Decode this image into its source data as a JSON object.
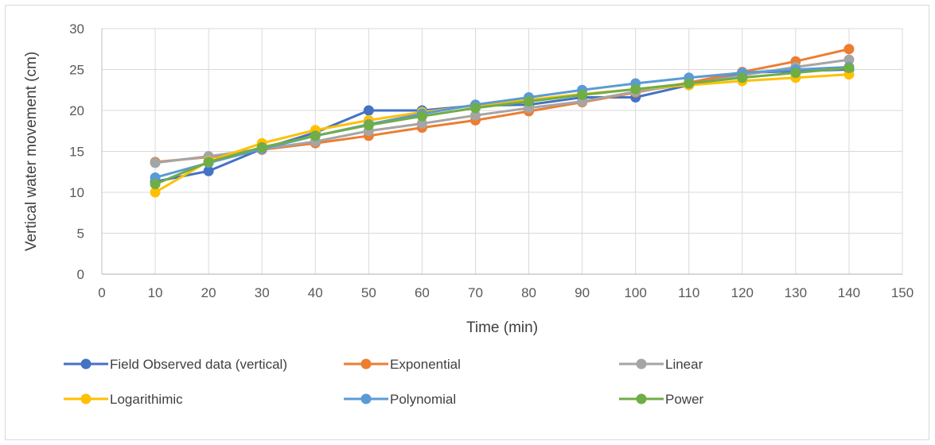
{
  "chart_data": {
    "type": "line",
    "title": "",
    "xlabel": "Time (min)",
    "ylabel": "Vertical water movement (cm)",
    "xlim": [
      0,
      150
    ],
    "ylim": [
      0,
      30
    ],
    "xticks": [
      0,
      10,
      20,
      30,
      40,
      50,
      60,
      70,
      80,
      90,
      100,
      110,
      120,
      130,
      140,
      150
    ],
    "yticks": [
      0,
      5,
      10,
      15,
      20,
      25,
      30
    ],
    "grid": true,
    "legend_position": "bottom",
    "x": [
      10,
      20,
      30,
      40,
      50,
      60,
      70,
      80,
      90,
      100,
      110,
      120,
      130,
      140
    ],
    "series": [
      {
        "name": "Field Observed data (vertical)",
        "color": "#4472C4",
        "values": [
          11.3,
          12.6,
          15.3,
          17.3,
          20.0,
          20.0,
          20.6,
          20.7,
          21.6,
          21.6,
          23.1,
          24.6,
          24.8,
          25.0
        ]
      },
      {
        "name": "Exponential",
        "color": "#ED7D31",
        "values": [
          13.7,
          14.3,
          15.2,
          16.0,
          16.9,
          17.9,
          18.8,
          19.9,
          21.0,
          22.2,
          23.4,
          24.7,
          26.0,
          27.5
        ]
      },
      {
        "name": "Linear",
        "color": "#A5A5A5",
        "values": [
          13.6,
          14.4,
          15.3,
          16.2,
          17.5,
          18.4,
          19.4,
          20.3,
          21.1,
          22.3,
          23.2,
          24.3,
          25.3,
          26.2
        ]
      },
      {
        "name": "Logarithimic",
        "color": "#FFC000",
        "values": [
          10.0,
          13.8,
          16.0,
          17.6,
          18.8,
          19.8,
          20.6,
          21.3,
          22.0,
          22.6,
          23.1,
          23.6,
          24.0,
          24.4
        ]
      },
      {
        "name": "Polynomial",
        "color": "#5B9BD5",
        "values": [
          11.8,
          13.6,
          15.3,
          16.9,
          18.3,
          19.6,
          20.7,
          21.6,
          22.5,
          23.3,
          24.0,
          24.6,
          25.0,
          25.3
        ]
      },
      {
        "name": "Power",
        "color": "#70AD47",
        "values": [
          11.0,
          13.7,
          15.5,
          16.9,
          18.2,
          19.3,
          20.3,
          21.1,
          21.9,
          22.6,
          23.3,
          24.0,
          24.6,
          25.2
        ]
      }
    ]
  }
}
